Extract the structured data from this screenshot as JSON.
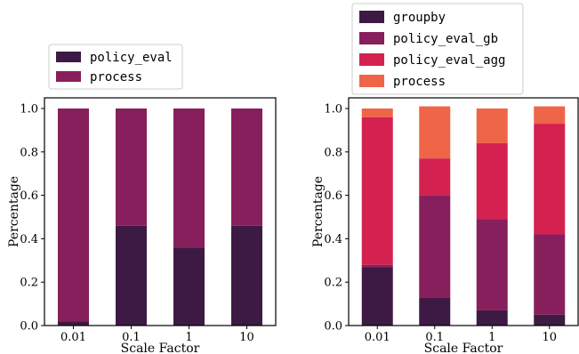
{
  "chart_data": [
    {
      "type": "bar",
      "stacked": true,
      "categories": [
        "0.01",
        "0.1",
        "1",
        "10"
      ],
      "series": [
        {
          "name": "policy_eval",
          "color": "#3d1a43",
          "values": [
            0.02,
            0.46,
            0.36,
            0.46
          ]
        },
        {
          "name": "process",
          "color": "#871f5c",
          "values": [
            0.98,
            0.54,
            0.64,
            0.54
          ]
        }
      ],
      "xlabel": "Scale Factor",
      "ylabel": "Percentage",
      "ylim": [
        0,
        1.0
      ],
      "yticks": [
        "0.0",
        "0.2",
        "0.4",
        "0.6",
        "0.8",
        "1.0"
      ],
      "grid": false,
      "legend": "above"
    },
    {
      "type": "bar",
      "stacked": true,
      "categories": [
        "0.01",
        "0.1",
        "1",
        "10"
      ],
      "series": [
        {
          "name": "groupby",
          "color": "#3d1a43",
          "values": [
            0.27,
            0.13,
            0.07,
            0.05
          ]
        },
        {
          "name": "policy_eval_gb",
          "color": "#871f5c",
          "values": [
            0.01,
            0.47,
            0.42,
            0.37
          ]
        },
        {
          "name": "policy_eval_agg",
          "color": "#d42150",
          "values": [
            0.68,
            0.17,
            0.35,
            0.51
          ]
        },
        {
          "name": "process",
          "color": "#ef6548",
          "values": [
            0.04,
            0.24,
            0.16,
            0.08
          ]
        }
      ],
      "xlabel": "Scale Factor",
      "ylabel": "Percentage",
      "ylim": [
        0,
        1.0
      ],
      "yticks": [
        "0.0",
        "0.2",
        "0.4",
        "0.6",
        "0.8",
        "1.0"
      ],
      "grid": false,
      "legend": "above"
    }
  ]
}
